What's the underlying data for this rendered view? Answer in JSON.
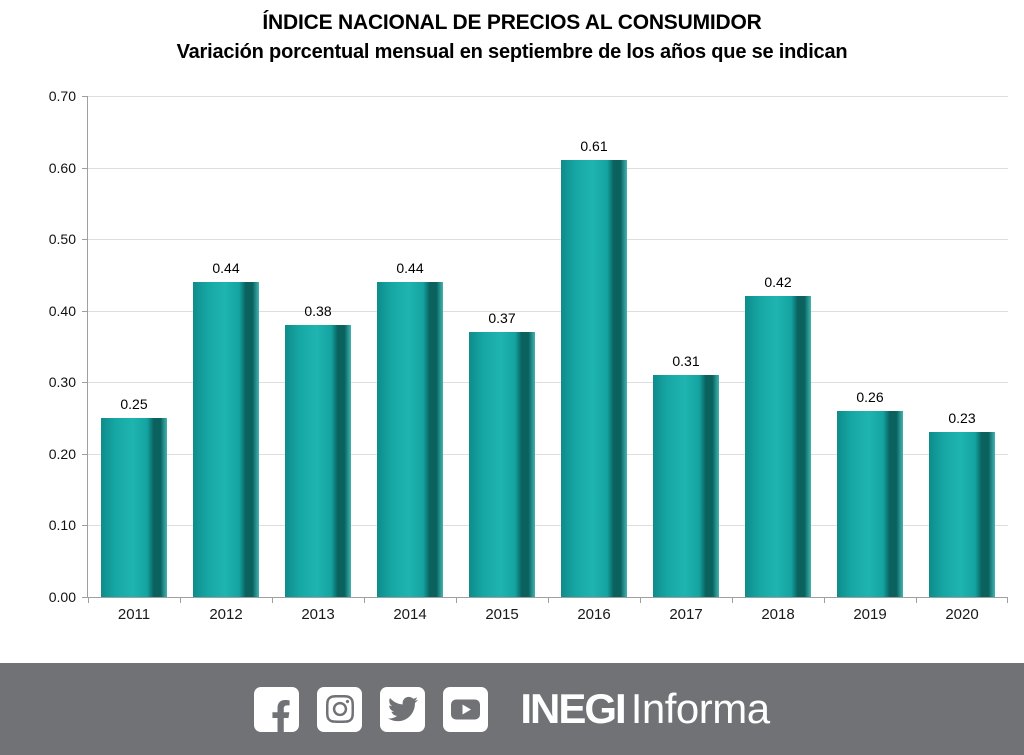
{
  "header": {
    "title": "ÍNDICE NACIONAL DE PRECIOS AL CONSUMIDOR",
    "subtitle": "Variación porcentual mensual en septiembre de los años que se indican"
  },
  "chart_data": {
    "type": "bar",
    "categories": [
      "2011",
      "2012",
      "2013",
      "2014",
      "2015",
      "2016",
      "2017",
      "2018",
      "2019",
      "2020"
    ],
    "values": [
      0.25,
      0.44,
      0.38,
      0.44,
      0.37,
      0.61,
      0.31,
      0.42,
      0.26,
      0.23
    ],
    "data_labels": [
      "0.25",
      "0.44",
      "0.38",
      "0.44",
      "0.37",
      "0.61",
      "0.31",
      "0.42",
      "0.26",
      "0.23"
    ],
    "title": "ÍNDICE NACIONAL DE PRECIOS AL CONSUMIDOR",
    "subtitle": "Variación porcentual mensual en septiembre de los años que se indican",
    "xlabel": "",
    "ylabel": "",
    "ylim": [
      0.0,
      0.7
    ],
    "y_ticks": [
      "0.00",
      "0.10",
      "0.20",
      "0.30",
      "0.40",
      "0.50",
      "0.60",
      "0.70"
    ],
    "grid": true,
    "legend": "none",
    "bar_color": "#14a3a0",
    "bar_color_dark_edge": "#0a615e",
    "bar_color_light_mid": "#1fb4b0"
  },
  "footer": {
    "background_color": "#717275",
    "icons": [
      {
        "name": "facebook"
      },
      {
        "name": "instagram"
      },
      {
        "name": "twitter"
      },
      {
        "name": "youtube"
      }
    ],
    "logo_bold": "INEGI",
    "logo_light": "Informa"
  }
}
